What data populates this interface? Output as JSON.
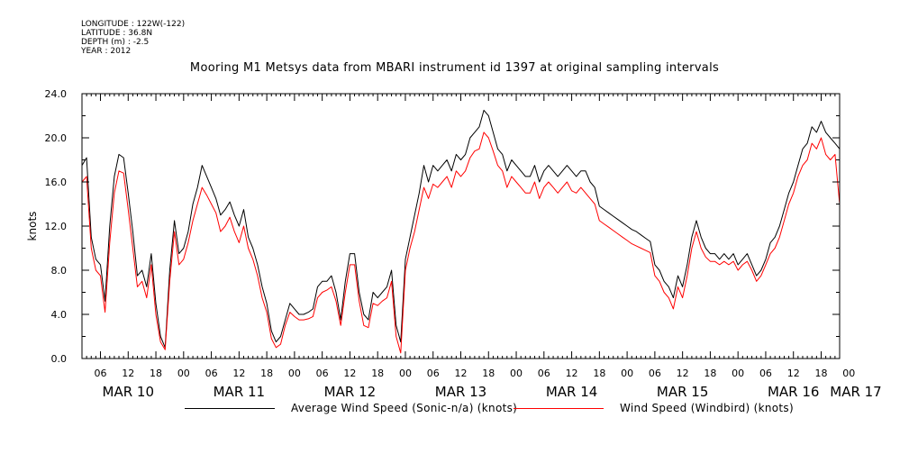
{
  "header": {
    "longitude": "LONGITUDE : 122W(-122)",
    "latitude": "LATITUDE : 36.8N",
    "depth": "DEPTH (m) : -2.5",
    "year": "YEAR : 2012"
  },
  "chart_data": {
    "type": "line",
    "title": "Mooring M1 Metsys data from MBARI instrument id 1397 at original sampling intervals",
    "ylabel": "knots",
    "xlabel": "",
    "ylim": [
      0,
      24
    ],
    "yticks": [
      "0.0",
      "4.0",
      "8.0",
      "12.0",
      "16.0",
      "20.0",
      "24.0"
    ],
    "x_hours_range": [
      2,
      166
    ],
    "hour_ticks": [
      {
        "h": 6,
        "label": "06"
      },
      {
        "h": 12,
        "label": "12"
      },
      {
        "h": 18,
        "label": "18"
      },
      {
        "h": 24,
        "label": "00"
      },
      {
        "h": 30,
        "label": "06"
      },
      {
        "h": 36,
        "label": "12"
      },
      {
        "h": 42,
        "label": "18"
      },
      {
        "h": 48,
        "label": "00"
      },
      {
        "h": 54,
        "label": "06"
      },
      {
        "h": 60,
        "label": "12"
      },
      {
        "h": 66,
        "label": "18"
      },
      {
        "h": 72,
        "label": "00"
      },
      {
        "h": 78,
        "label": "06"
      },
      {
        "h": 84,
        "label": "12"
      },
      {
        "h": 90,
        "label": "18"
      },
      {
        "h": 96,
        "label": "00"
      },
      {
        "h": 102,
        "label": "06"
      },
      {
        "h": 108,
        "label": "12"
      },
      {
        "h": 114,
        "label": "18"
      },
      {
        "h": 120,
        "label": "00"
      },
      {
        "h": 126,
        "label": "06"
      },
      {
        "h": 132,
        "label": "12"
      },
      {
        "h": 138,
        "label": "18"
      },
      {
        "h": 144,
        "label": "00"
      },
      {
        "h": 150,
        "label": "06"
      },
      {
        "h": 156,
        "label": "12"
      },
      {
        "h": 162,
        "label": "18"
      },
      {
        "h": 168,
        "label": "00"
      }
    ],
    "day_labels": [
      {
        "h": 12,
        "label": "MAR 10"
      },
      {
        "h": 36,
        "label": "MAR 11"
      },
      {
        "h": 60,
        "label": "MAR 12"
      },
      {
        "h": 84,
        "label": "MAR 13"
      },
      {
        "h": 108,
        "label": "MAR 14"
      },
      {
        "h": 132,
        "label": "MAR 15"
      },
      {
        "h": 156,
        "label": "MAR 16"
      },
      {
        "h": 170,
        "label": "MAR 17"
      }
    ],
    "series": [
      {
        "name": "Average Wind Speed (Sonic-n/a) (knots)",
        "color": "#000000",
        "hours": [
          2,
          3,
          4,
          5,
          6,
          7,
          8,
          9,
          10,
          11,
          12,
          13,
          14,
          15,
          16,
          17,
          18,
          19,
          20,
          21,
          22,
          23,
          24,
          25,
          26,
          27,
          28,
          29,
          30,
          31,
          32,
          33,
          34,
          35,
          36,
          37,
          38,
          39,
          40,
          41,
          42,
          43,
          44,
          45,
          46,
          47,
          48,
          49,
          50,
          51,
          52,
          53,
          54,
          55,
          56,
          57,
          58,
          59,
          60,
          61,
          62,
          63,
          64,
          65,
          66,
          67,
          68,
          69,
          70,
          71,
          72,
          73,
          74,
          75,
          76,
          77,
          78,
          79,
          80,
          81,
          82,
          83,
          84,
          85,
          86,
          87,
          88,
          89,
          90,
          91,
          92,
          93,
          94,
          95,
          96,
          97,
          98,
          99,
          100,
          101,
          102,
          103,
          104,
          105,
          106,
          107,
          108,
          109,
          110,
          111,
          112,
          113,
          114,
          115,
          116,
          117,
          118,
          119,
          120,
          121,
          122,
          123,
          124,
          125,
          126,
          127,
          128,
          129,
          130,
          131,
          132,
          133,
          134,
          135,
          136,
          137,
          138,
          139,
          140,
          141,
          142,
          143,
          144,
          145,
          146,
          147,
          148,
          149,
          150,
          151,
          152,
          153,
          154,
          155,
          156,
          157,
          158,
          159,
          160,
          161,
          162,
          163,
          164,
          165,
          166
        ],
        "values": [
          17.5,
          18.2,
          11.0,
          9.0,
          8.5,
          5.2,
          12.0,
          16.5,
          18.5,
          18.2,
          15.0,
          11.5,
          7.5,
          8.0,
          6.5,
          9.5,
          5.0,
          2.0,
          1.0,
          8.0,
          12.5,
          9.5,
          10.0,
          11.5,
          14.0,
          15.5,
          17.5,
          16.5,
          15.5,
          14.5,
          13.0,
          13.5,
          14.2,
          13.0,
          12.0,
          13.5,
          11.0,
          10.0,
          8.5,
          6.5,
          5.0,
          2.5,
          1.5,
          2.0,
          3.5,
          5.0,
          4.5,
          4.0,
          4.0,
          4.2,
          4.5,
          6.5,
          7.0,
          7.0,
          7.5,
          6.0,
          3.5,
          7.0,
          9.5,
          9.5,
          6.0,
          4.0,
          3.5,
          6.0,
          5.5,
          6.0,
          6.5,
          8.0,
          3.0,
          1.5,
          9.0,
          11.0,
          13.0,
          15.0,
          17.5,
          16.0,
          17.5,
          17.0,
          17.5,
          18.0,
          17.0,
          18.5,
          18.0,
          18.5,
          20.0,
          20.5,
          21.0,
          22.5,
          22.0,
          20.5,
          19.0,
          18.5,
          17.0,
          18.0,
          17.5,
          17.0,
          16.5,
          16.5,
          17.5,
          16.0,
          17.0,
          17.5,
          17.0,
          16.5,
          17.0,
          17.5,
          17.0,
          16.5,
          17.0,
          17.0,
          16.0,
          15.5,
          13.8,
          13.5,
          13.2,
          12.9,
          12.6,
          12.3,
          12.0,
          11.7,
          11.5,
          11.2,
          10.9,
          10.6,
          8.5,
          8.0,
          7.0,
          6.5,
          5.5,
          7.5,
          6.5,
          8.5,
          11.0,
          12.5,
          11.0,
          10.0,
          9.5,
          9.5,
          9.0,
          9.5,
          9.0,
          9.5,
          8.5,
          9.0,
          9.5,
          8.5,
          7.5,
          8.0,
          9.0,
          10.5,
          11.0,
          12.0,
          13.5,
          15.0,
          16.0,
          17.5,
          19.0,
          19.5,
          21.0,
          20.5,
          21.5,
          20.5,
          20.0,
          19.5,
          19.0
        ]
      },
      {
        "name": "Wind Speed (Windbird) (knots)",
        "color": "#ff0000",
        "hours": [
          2,
          3,
          4,
          5,
          6,
          7,
          8,
          9,
          10,
          11,
          12,
          13,
          14,
          15,
          16,
          17,
          18,
          19,
          20,
          21,
          22,
          23,
          24,
          25,
          26,
          27,
          28,
          29,
          30,
          31,
          32,
          33,
          34,
          35,
          36,
          37,
          38,
          39,
          40,
          41,
          42,
          43,
          44,
          45,
          46,
          47,
          48,
          49,
          50,
          51,
          52,
          53,
          54,
          55,
          56,
          57,
          58,
          59,
          60,
          61,
          62,
          63,
          64,
          65,
          66,
          67,
          68,
          69,
          70,
          71,
          72,
          73,
          74,
          75,
          76,
          77,
          78,
          79,
          80,
          81,
          82,
          83,
          84,
          85,
          86,
          87,
          88,
          89,
          90,
          91,
          92,
          93,
          94,
          95,
          96,
          97,
          98,
          99,
          100,
          101,
          102,
          103,
          104,
          105,
          106,
          107,
          108,
          109,
          110,
          111,
          112,
          113,
          114,
          115,
          116,
          117,
          118,
          119,
          120,
          121,
          122,
          123,
          124,
          125,
          126,
          127,
          128,
          129,
          130,
          131,
          132,
          133,
          134,
          135,
          136,
          137,
          138,
          139,
          140,
          141,
          142,
          143,
          144,
          145,
          146,
          147,
          148,
          149,
          150,
          151,
          152,
          153,
          154,
          155,
          156,
          157,
          158,
          159,
          160,
          161,
          162,
          163,
          164,
          165,
          166
        ],
        "values": [
          16.0,
          16.5,
          10.0,
          8.0,
          7.5,
          4.2,
          10.5,
          15.0,
          17.0,
          16.8,
          13.5,
          10.0,
          6.5,
          7.0,
          5.5,
          8.5,
          4.0,
          1.5,
          0.8,
          7.0,
          11.5,
          8.5,
          9.0,
          10.5,
          12.5,
          14.0,
          15.5,
          14.8,
          14.0,
          13.2,
          11.5,
          12.0,
          12.8,
          11.5,
          10.5,
          12.0,
          10.0,
          9.0,
          7.5,
          5.5,
          4.2,
          1.8,
          1.0,
          1.3,
          3.0,
          4.2,
          3.8,
          3.5,
          3.5,
          3.6,
          3.8,
          5.5,
          6.0,
          6.2,
          6.5,
          5.2,
          3.0,
          6.0,
          8.5,
          8.5,
          5.2,
          3.0,
          2.8,
          5.0,
          4.8,
          5.2,
          5.5,
          7.0,
          2.0,
          0.5,
          8.0,
          10.0,
          11.5,
          13.5,
          15.5,
          14.5,
          15.8,
          15.5,
          16.0,
          16.5,
          15.5,
          17.0,
          16.5,
          17.0,
          18.2,
          18.8,
          19.0,
          20.5,
          20.0,
          18.8,
          17.5,
          17.0,
          15.5,
          16.5,
          16.0,
          15.5,
          15.0,
          15.0,
          16.0,
          14.5,
          15.5,
          16.0,
          15.5,
          15.0,
          15.5,
          16.0,
          15.2,
          15.0,
          15.5,
          15.0,
          14.5,
          14.0,
          12.5,
          12.2,
          11.9,
          11.6,
          11.3,
          11.0,
          10.7,
          10.4,
          10.2,
          10.0,
          9.8,
          9.6,
          7.5,
          7.0,
          6.0,
          5.5,
          4.5,
          6.5,
          5.5,
          7.5,
          10.0,
          11.5,
          10.0,
          9.2,
          8.8,
          8.8,
          8.5,
          8.8,
          8.5,
          8.8,
          8.0,
          8.5,
          8.8,
          8.0,
          7.0,
          7.5,
          8.5,
          9.5,
          10.0,
          11.0,
          12.5,
          14.0,
          15.0,
          16.5,
          17.5,
          18.0,
          19.5,
          19.0,
          20.0,
          18.5,
          18.0,
          18.5,
          14.0
        ]
      }
    ],
    "grid": false,
    "legend_position": "bottom"
  },
  "colors": {
    "series1": "#000000",
    "series2": "#ff0000",
    "axis": "#000000",
    "background": "#ffffff"
  }
}
